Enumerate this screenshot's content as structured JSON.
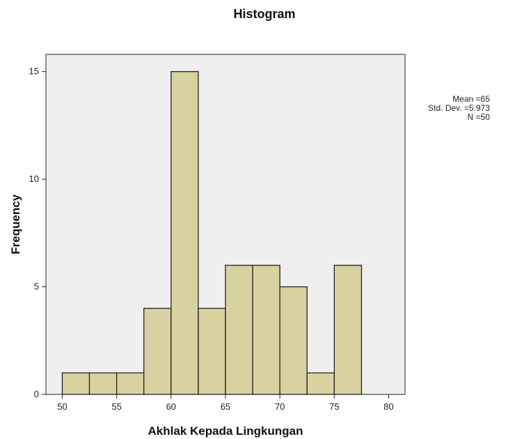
{
  "colors": {
    "plot_background": "#efefef",
    "bar_fill": "#d8d1a0",
    "bar_stroke": "#222222",
    "axis": "#222222"
  },
  "stats": {
    "mean": "Mean =65",
    "std_dev": "Std. Dev. =5.973",
    "n": "N =50"
  },
  "chart_data": {
    "type": "bar",
    "title": "Histogram",
    "xlabel": "Akhlak Kepada Lingkungan",
    "ylabel": "Frequency",
    "xlim": [
      48.5,
      81.5
    ],
    "ylim": [
      0,
      15.8
    ],
    "grid": false,
    "x_ticks": [
      50,
      55,
      60,
      65,
      70,
      75,
      80
    ],
    "y_ticks": [
      0,
      5,
      10,
      15
    ],
    "bins": [
      {
        "start": 50.0,
        "end": 52.5,
        "count": 1
      },
      {
        "start": 52.5,
        "end": 55.0,
        "count": 1
      },
      {
        "start": 55.0,
        "end": 57.5,
        "count": 1
      },
      {
        "start": 57.5,
        "end": 60.0,
        "count": 4
      },
      {
        "start": 60.0,
        "end": 62.5,
        "count": 15
      },
      {
        "start": 62.5,
        "end": 65.0,
        "count": 4
      },
      {
        "start": 65.0,
        "end": 67.5,
        "count": 6
      },
      {
        "start": 67.5,
        "end": 70.0,
        "count": 6
      },
      {
        "start": 70.0,
        "end": 72.5,
        "count": 5
      },
      {
        "start": 72.5,
        "end": 75.0,
        "count": 1
      },
      {
        "start": 75.0,
        "end": 77.5,
        "count": 6
      }
    ]
  }
}
